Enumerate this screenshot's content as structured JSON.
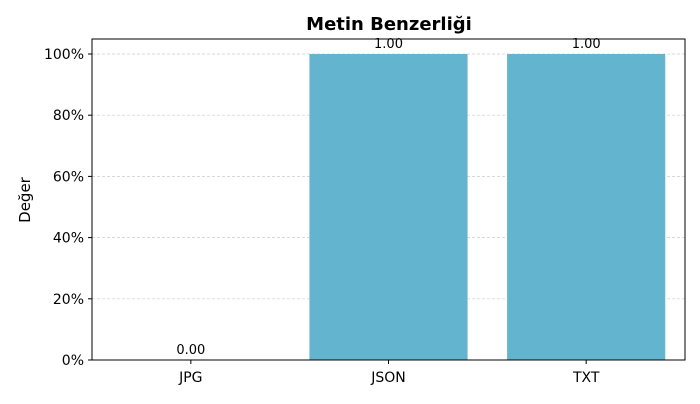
{
  "chart_data": {
    "type": "bar",
    "title": "Metin Benzerliği",
    "xlabel": "",
    "ylabel": "Değer",
    "categories": [
      "JPG",
      "JSON",
      "TXT"
    ],
    "values": [
      0.0,
      1.0,
      1.0
    ],
    "value_labels": [
      "0.00",
      "1.00",
      "1.00"
    ],
    "ylim": [
      0,
      1
    ],
    "yticks": [
      0,
      0.2,
      0.4,
      0.6,
      0.8,
      1.0
    ],
    "ytick_labels": [
      "0%",
      "20%",
      "40%",
      "60%",
      "80%",
      "100%"
    ],
    "grid": "horizontal-dashed",
    "legend": "none",
    "bar_color": "#63b4ce"
  }
}
